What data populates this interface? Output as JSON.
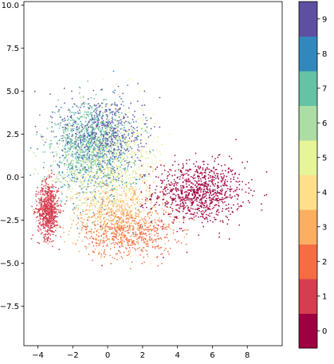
{
  "chart_data": {
    "type": "scatter",
    "title": "",
    "xlabel": "",
    "ylabel": "",
    "xlim": [
      -4.8,
      10.0
    ],
    "ylim": [
      -9.8,
      10.2
    ],
    "x_ticks": [
      -4,
      -2,
      0,
      2,
      4,
      6,
      8
    ],
    "x_tick_labels": [
      "−4",
      "−2",
      "0",
      "2",
      "4",
      "6",
      "8"
    ],
    "y_ticks": [
      10.0,
      7.5,
      5.0,
      2.5,
      0.0,
      -2.5,
      -5.0,
      -7.5
    ],
    "y_tick_labels": [
      "10.0",
      "7.5",
      "5.0",
      "2.5",
      "0.0",
      "−2.5",
      "−5.0",
      "−7.5"
    ],
    "grid": false,
    "marker_size": 1,
    "colormap": "Spectral",
    "colorbar": {
      "ticks": [
        0,
        1,
        2,
        3,
        4,
        5,
        6,
        7,
        8,
        9
      ],
      "tick_labels": [
        "0",
        "1",
        "2",
        "3",
        "4",
        "5",
        "6",
        "7",
        "8",
        "9"
      ],
      "colors": [
        "#9e0142",
        "#d53e4f",
        "#f46d43",
        "#fdae61",
        "#fee08b",
        "#e6f598",
        "#abdda4",
        "#66c2a5",
        "#3288bd",
        "#5e4fa2"
      ]
    },
    "clusters": [
      {
        "class": 0,
        "center": [
          5.2,
          -0.9
        ],
        "spread": [
          1.3,
          0.9
        ],
        "count": 900
      },
      {
        "class": 1,
        "center": [
          -3.4,
          -1.9
        ],
        "spread": [
          0.3,
          0.8
        ],
        "count": 650
      },
      {
        "class": 2,
        "center": [
          1.2,
          -3.3
        ],
        "spread": [
          1.3,
          0.7
        ],
        "count": 500
      },
      {
        "class": 3,
        "center": [
          0.6,
          -2.3
        ],
        "spread": [
          1.5,
          0.9
        ],
        "count": 450
      },
      {
        "class": 4,
        "center": [
          0.0,
          -0.6
        ],
        "spread": [
          1.5,
          1.3
        ],
        "count": 450
      },
      {
        "class": 5,
        "center": [
          0.8,
          1.2
        ],
        "spread": [
          1.2,
          1.5
        ],
        "count": 350
      },
      {
        "class": 6,
        "center": [
          -1.2,
          0.9
        ],
        "spread": [
          1.2,
          1.4
        ],
        "count": 450
      },
      {
        "class": 7,
        "center": [
          -1.0,
          2.2
        ],
        "spread": [
          1.0,
          1.1
        ],
        "count": 500
      },
      {
        "class": 8,
        "center": [
          -0.6,
          1.2
        ],
        "spread": [
          1.3,
          1.5
        ],
        "count": 450
      },
      {
        "class": 9,
        "center": [
          -0.3,
          2.6
        ],
        "spread": [
          1.2,
          1.1
        ],
        "count": 500
      }
    ]
  }
}
